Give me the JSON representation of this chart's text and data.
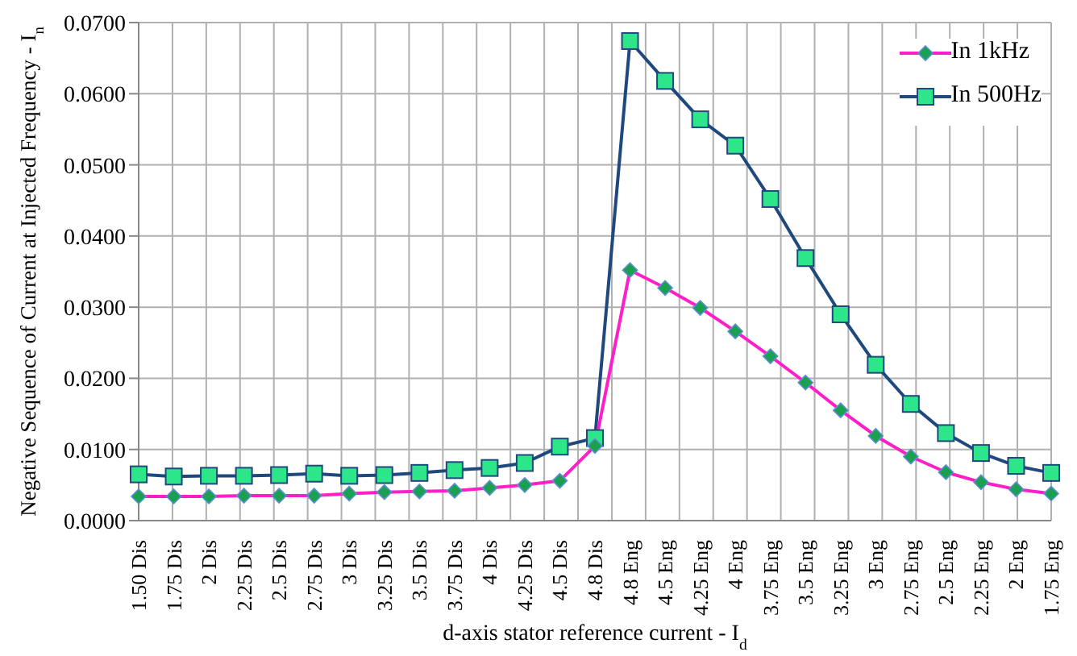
{
  "chart_data": {
    "type": "line",
    "xlabel": "d-axis stator reference current - I$_{d}$",
    "ylabel": "Negative Sequence of Current at Injected Frequency - I$_{n}$",
    "categories": [
      "1.50 Dis",
      "1.75 Dis",
      "2 Dis",
      "2.25 Dis",
      "2.5 Dis",
      "2.75 Dis",
      "3 Dis",
      "3.25 Dis",
      "3.5 Dis",
      "3.75 Dis",
      "4 Dis",
      "4.25 Dis",
      "4.5 Dis",
      "4.8 Dis",
      "4.8 Eng",
      "4.5 Eng",
      "4.25 Eng",
      "4 Eng",
      "3.75 Eng",
      "3.5 Eng",
      "3.25 Eng",
      "3 Eng",
      "2.75 Eng",
      "2.5 Eng",
      "2.25 Eng",
      "2 Eng",
      "1.75 Eng"
    ],
    "series": [
      {
        "name": "In 1kHz",
        "color": "#ff1fc8",
        "marker": "diamond",
        "values": [
          0.0034,
          0.0034,
          0.0034,
          0.0035,
          0.0035,
          0.0035,
          0.0038,
          0.004,
          0.0041,
          0.0042,
          0.0046,
          0.005,
          0.0056,
          0.0105,
          0.0352,
          0.0327,
          0.0299,
          0.0266,
          0.0231,
          0.0194,
          0.0155,
          0.0119,
          0.009,
          0.0068,
          0.0054,
          0.0044,
          0.0038
        ]
      },
      {
        "name": "In 500Hz",
        "color": "#1f497d",
        "marker": "square",
        "values": [
          0.0065,
          0.0062,
          0.0063,
          0.0063,
          0.0064,
          0.0066,
          0.0063,
          0.0064,
          0.0067,
          0.0071,
          0.0074,
          0.0081,
          0.0104,
          0.0116,
          0.0674,
          0.0618,
          0.0564,
          0.0527,
          0.0452,
          0.0369,
          0.029,
          0.0219,
          0.0164,
          0.0123,
          0.0095,
          0.0077,
          0.0067
        ]
      }
    ],
    "ylim": [
      0,
      0.07
    ],
    "yticks": [
      {
        "value": 0,
        "label": "0.0000"
      },
      {
        "value": 0.01,
        "label": "0.0100"
      },
      {
        "value": 0.02,
        "label": "0.0200"
      },
      {
        "value": 0.03,
        "label": "0.0300"
      },
      {
        "value": 0.04,
        "label": "0.0400"
      },
      {
        "value": 0.05,
        "label": "0.0500"
      },
      {
        "value": 0.06,
        "label": "0.0600"
      },
      {
        "value": 0.07,
        "label": "0.0700"
      }
    ],
    "grid": true,
    "legend": "top right"
  }
}
